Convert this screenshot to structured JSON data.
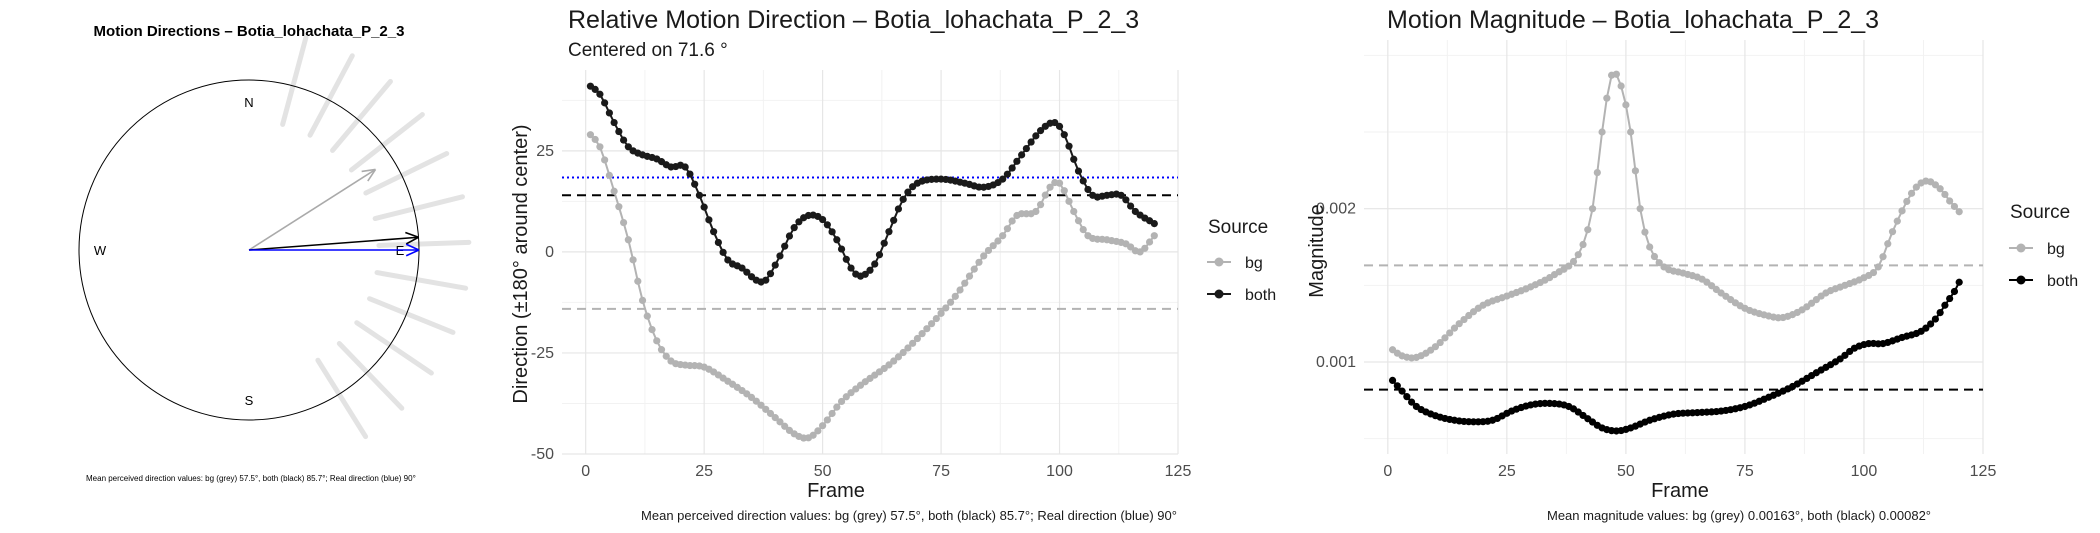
{
  "compass": {
    "title": "Motion Directions – Botia_lohachata_P_2_3",
    "labels": {
      "n": "N",
      "s": "S",
      "e": "E",
      "w": "W"
    },
    "caption": "Mean perceived direction values: bg (grey) 57.5°, both (black) 85.7°; Real direction (blue) 90°",
    "arrows": [
      {
        "name": "bg",
        "angle_deg": 57.5,
        "color": "#aaaaaa"
      },
      {
        "name": "both",
        "angle_deg": 85.7,
        "color": "#000000"
      },
      {
        "name": "real",
        "angle_deg": 90,
        "color": "#0000ff"
      }
    ],
    "rays_deg": [
      15,
      28,
      40,
      52,
      64,
      76,
      88,
      100,
      112,
      124,
      136,
      148
    ]
  },
  "direction": {
    "title": "Relative Motion Direction – Botia_lohachata_P_2_3",
    "subtitle": "Centered on  71.6 °",
    "xlabel": "Frame",
    "ylabel": "Direction (±180° around center)",
    "caption": "Mean perceived direction values: bg (grey) 57.5°, both (black) 85.7°; Real direction (blue) 90°",
    "legend_title": "Source",
    "legend": [
      {
        "label": "bg",
        "color": "#b3b3b3"
      },
      {
        "label": "both",
        "color": "#1a1a1a"
      }
    ]
  },
  "magnitude": {
    "title": "Motion Magnitude – Botia_lohachata_P_2_3",
    "xlabel": "Frame",
    "ylabel": "Magnitude",
    "caption": "Mean magnitude values: bg (grey) 0.00163°, both (black) 0.00082°",
    "legend_title": "Source",
    "legend": [
      {
        "label": "bg",
        "color": "#b3b3b3"
      },
      {
        "label": "both",
        "color": "#000000"
      }
    ]
  },
  "chart_data": [
    {
      "type": "line",
      "title": "Relative Motion Direction – Botia_lohachata_P_2_3",
      "subtitle": "Centered on  71.6 °",
      "xlabel": "Frame",
      "ylabel": "Direction (±180° around center)",
      "xlim": [
        -5,
        125
      ],
      "ylim": [
        -50,
        45
      ],
      "xticks": [
        0,
        25,
        50,
        75,
        100,
        125
      ],
      "yticks": [
        -50,
        -25,
        0,
        25
      ],
      "grid": true,
      "legend": "right",
      "series": [
        {
          "name": "bg",
          "color": "#b3b3b3",
          "markers": true,
          "knots": [
            [
              1,
              29
            ],
            [
              3,
              26
            ],
            [
              6,
              15
            ],
            [
              9,
              3
            ],
            [
              12,
              -12
            ],
            [
              15,
              -22
            ],
            [
              18,
              -27
            ],
            [
              21,
              -28
            ],
            [
              25,
              -28.5
            ],
            [
              30,
              -32
            ],
            [
              35,
              -36
            ],
            [
              40,
              -41
            ],
            [
              44,
              -45
            ],
            [
              47,
              -46
            ],
            [
              50,
              -43
            ],
            [
              54,
              -37
            ],
            [
              58,
              -33
            ],
            [
              65,
              -27
            ],
            [
              72,
              -19
            ],
            [
              78,
              -11
            ],
            [
              84,
              -1
            ],
            [
              88,
              4
            ],
            [
              91,
              9
            ],
            [
              95,
              10
            ],
            [
              98,
              16
            ],
            [
              100,
              17
            ],
            [
              103,
              10
            ],
            [
              106,
              4
            ],
            [
              110,
              3
            ],
            [
              114,
              2
            ],
            [
              117,
              0
            ],
            [
              120,
              4
            ]
          ]
        },
        {
          "name": "both",
          "color": "#1a1a1a",
          "markers": true,
          "knots": [
            [
              1,
              41
            ],
            [
              3,
              39
            ],
            [
              6,
              32
            ],
            [
              9,
              26
            ],
            [
              12,
              24
            ],
            [
              15,
              23
            ],
            [
              18,
              21
            ],
            [
              21,
              21
            ],
            [
              24,
              14
            ],
            [
              27,
              5
            ],
            [
              30,
              -2
            ],
            [
              33,
              -4
            ],
            [
              36,
              -7
            ],
            [
              38,
              -7
            ],
            [
              41,
              -1
            ],
            [
              44,
              6
            ],
            [
              47,
              9
            ],
            [
              50,
              8
            ],
            [
              53,
              3
            ],
            [
              56,
              -4
            ],
            [
              58,
              -6
            ],
            [
              61,
              -3
            ],
            [
              64,
              5
            ],
            [
              67,
              13
            ],
            [
              70,
              17
            ],
            [
              75,
              18
            ],
            [
              80,
              17
            ],
            [
              84,
              16
            ],
            [
              88,
              18
            ],
            [
              92,
              24
            ],
            [
              96,
              30
            ],
            [
              99,
              32
            ],
            [
              101,
              29
            ],
            [
              104,
              20
            ],
            [
              107,
              14
            ],
            [
              110,
              14
            ],
            [
              113,
              14
            ],
            [
              116,
              10
            ],
            [
              120,
              7
            ]
          ]
        }
      ],
      "reference_lines": [
        {
          "name": "both mean",
          "y": 14,
          "color": "#000000",
          "style": "dashed"
        },
        {
          "name": "bg mean",
          "y": -14.1,
          "color": "#b3b3b3",
          "style": "dashed"
        },
        {
          "name": "real direction",
          "y": 18.4,
          "color": "#0000ff",
          "style": "dotted"
        }
      ]
    },
    {
      "type": "line",
      "title": "Motion Magnitude – Botia_lohachata_P_2_3",
      "xlabel": "Frame",
      "ylabel": "Magnitude",
      "xlim": [
        -5,
        125
      ],
      "ylim": [
        0.0004,
        0.0031
      ],
      "xticks": [
        0,
        25,
        50,
        75,
        100,
        125
      ],
      "yticks": [
        0.001,
        0.002
      ],
      "ytick_labels": [
        "0.001",
        "0.002"
      ],
      "grid": true,
      "legend": "right",
      "series": [
        {
          "name": "bg",
          "color": "#b3b3b3",
          "markers": true,
          "knots": [
            [
              1,
              0.00108
            ],
            [
              3,
              0.00104
            ],
            [
              6,
              0.00103
            ],
            [
              10,
              0.0011
            ],
            [
              15,
              0.00125
            ],
            [
              20,
              0.00137
            ],
            [
              25,
              0.00143
            ],
            [
              30,
              0.00149
            ],
            [
              35,
              0.00157
            ],
            [
              40,
              0.0017
            ],
            [
              43,
              0.002
            ],
            [
              45,
              0.0025
            ],
            [
              47,
              0.00287
            ],
            [
              49,
              0.0028
            ],
            [
              51,
              0.0025
            ],
            [
              53,
              0.002
            ],
            [
              55,
              0.00175
            ],
            [
              58,
              0.00162
            ],
            [
              62,
              0.00158
            ],
            [
              66,
              0.00154
            ],
            [
              70,
              0.00145
            ],
            [
              75,
              0.00135
            ],
            [
              80,
              0.0013
            ],
            [
              83,
              0.00129
            ],
            [
              87,
              0.00134
            ],
            [
              92,
              0.00145
            ],
            [
              96,
              0.0015
            ],
            [
              100,
              0.00155
            ],
            [
              103,
              0.00162
            ],
            [
              106,
              0.00185
            ],
            [
              110,
              0.0021
            ],
            [
              113,
              0.00218
            ],
            [
              116,
              0.00213
            ],
            [
              118,
              0.00205
            ],
            [
              120,
              0.00198
            ]
          ]
        },
        {
          "name": "both",
          "color": "#000000",
          "markers": true,
          "knots": [
            [
              1,
              0.00088
            ],
            [
              3,
              0.00081
            ],
            [
              6,
              0.00071
            ],
            [
              10,
              0.00065
            ],
            [
              14,
              0.00062
            ],
            [
              18,
              0.00061
            ],
            [
              22,
              0.00062
            ],
            [
              26,
              0.00068
            ],
            [
              30,
              0.00072
            ],
            [
              34,
              0.00073
            ],
            [
              38,
              0.00071
            ],
            [
              42,
              0.00063
            ],
            [
              45,
              0.00057
            ],
            [
              48,
              0.00055
            ],
            [
              51,
              0.00057
            ],
            [
              55,
              0.00062
            ],
            [
              60,
              0.00066
            ],
            [
              65,
              0.00067
            ],
            [
              70,
              0.00068
            ],
            [
              75,
              0.00071
            ],
            [
              80,
              0.00077
            ],
            [
              85,
              0.00084
            ],
            [
              90,
              0.00093
            ],
            [
              95,
              0.00102
            ],
            [
              98,
              0.00109
            ],
            [
              101,
              0.00112
            ],
            [
              104,
              0.00112
            ],
            [
              108,
              0.00116
            ],
            [
              112,
              0.0012
            ],
            [
              115,
              0.00128
            ],
            [
              117,
              0.00137
            ],
            [
              119,
              0.00146
            ],
            [
              120,
              0.00152
            ]
          ]
        }
      ],
      "reference_lines": [
        {
          "name": "bg mean",
          "y": 0.00163,
          "color": "#b3b3b3",
          "style": "dashed"
        },
        {
          "name": "both mean",
          "y": 0.00082,
          "color": "#000000",
          "style": "dashed"
        }
      ]
    }
  ]
}
